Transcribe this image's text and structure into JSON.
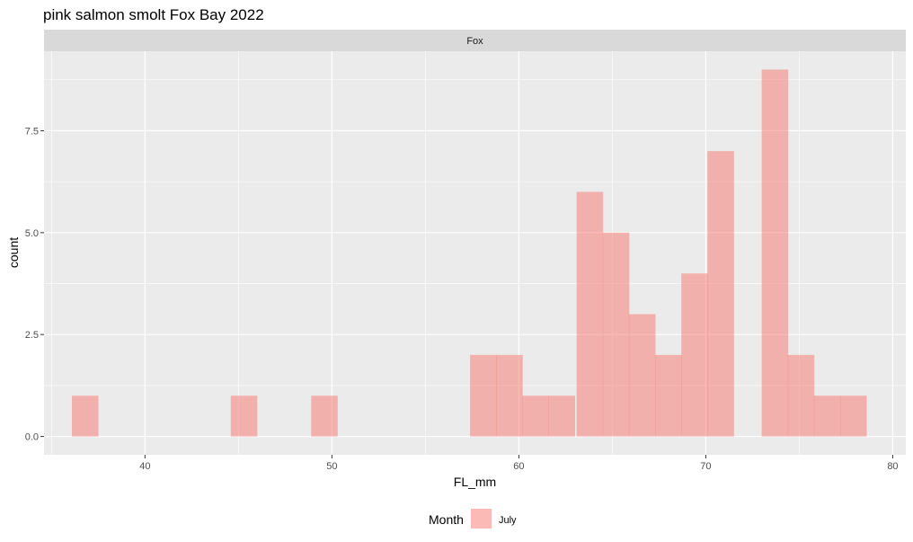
{
  "chart_data": {
    "type": "bar",
    "title": "pink salmon smolt Fox Bay 2022",
    "facet_label": "Fox",
    "xlabel": "FL_mm",
    "ylabel": "count",
    "xlim": [
      34.6,
      80.7
    ],
    "ylim": [
      -0.45,
      9.45
    ],
    "x_ticks": [
      40,
      50,
      60,
      70,
      80
    ],
    "x_tick_labels": [
      "40",
      "50",
      "60",
      "70",
      "80"
    ],
    "y_ticks": [
      0,
      2.5,
      5,
      7.5
    ],
    "y_tick_labels": [
      "0.0",
      "2.5",
      "5.0",
      "7.5"
    ],
    "grid": true,
    "legend": {
      "position": "bottom",
      "title": "Month",
      "entries": [
        {
          "label": "July",
          "color": "#F8766D"
        }
      ]
    },
    "bin_width": 1.42,
    "series": [
      {
        "name": "July",
        "color": "#F8766D",
        "bins": [
          {
            "x": 36.8,
            "count": 1
          },
          {
            "x": 45.3,
            "count": 1
          },
          {
            "x": 49.6,
            "count": 1
          },
          {
            "x": 58.1,
            "count": 2
          },
          {
            "x": 59.5,
            "count": 2
          },
          {
            "x": 60.9,
            "count": 1
          },
          {
            "x": 62.3,
            "count": 1
          },
          {
            "x": 63.8,
            "count": 6
          },
          {
            "x": 65.2,
            "count": 5
          },
          {
            "x": 66.6,
            "count": 3
          },
          {
            "x": 68.0,
            "count": 2
          },
          {
            "x": 69.4,
            "count": 4
          },
          {
            "x": 70.8,
            "count": 7
          },
          {
            "x": 73.7,
            "count": 9
          },
          {
            "x": 75.1,
            "count": 2
          },
          {
            "x": 76.5,
            "count": 1
          },
          {
            "x": 77.9,
            "count": 1
          }
        ]
      }
    ]
  }
}
